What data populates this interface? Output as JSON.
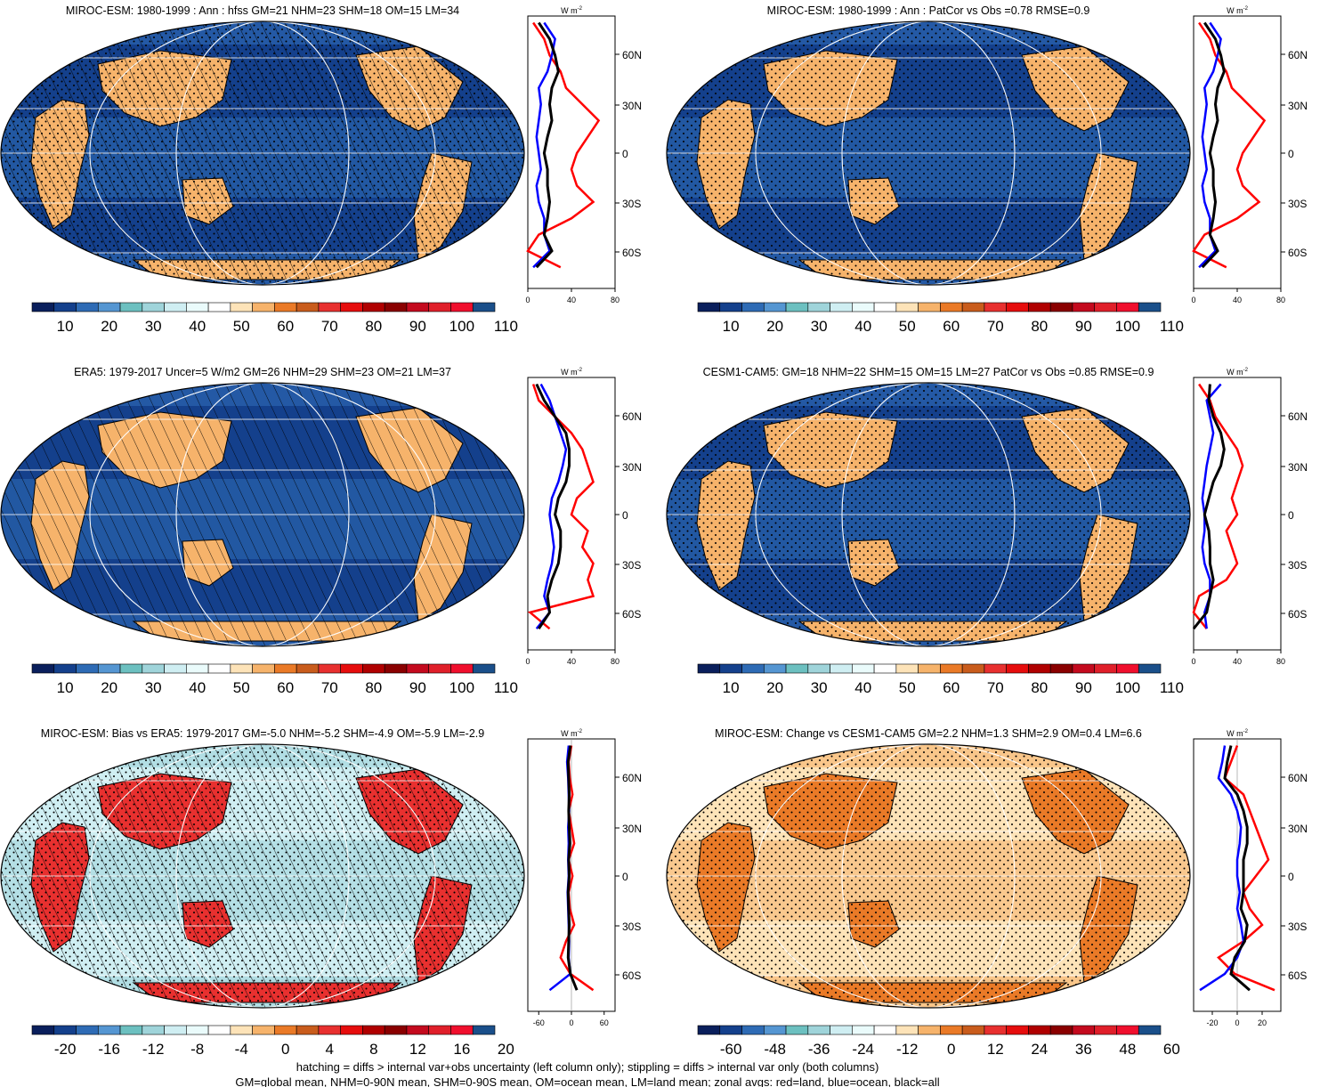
{
  "panels": [
    {
      "title": "MIROC-ESM: 1980-1999 : Ann : hfss GM=21 NHM=23 SHM=18 OM=15 LM=34",
      "map_style": "abs",
      "hatch": true,
      "stipple": true,
      "colorbar": {
        "labels": [
          "10",
          "20",
          "30",
          "40",
          "50",
          "60",
          "70",
          "80",
          "90",
          "100",
          "110"
        ],
        "colors": [
          "#0a1f5c",
          "#14408c",
          "#2e6bb5",
          "#5596d2",
          "#6cc0c0",
          "#9fd4da",
          "#cfeef2",
          "#eafbfb",
          "#ffffff",
          "#fde3b8",
          "#f6b36b",
          "#ea7a27",
          "#c95c1c",
          "#e8302f",
          "#e60d0d",
          "#b00000",
          "#8a0000",
          "#c40a1e",
          "#e01f2a",
          "#f00f2d",
          "#1a4f8a"
        ]
      },
      "zonal": {
        "xlabels": [
          "0",
          "40",
          "80"
        ],
        "xmin": 0,
        "xmax": 80,
        "unit_main": "W m",
        "unit_sup": "-2"
      }
    },
    {
      "title": "MIROC-ESM: 1980-1999 : Ann : PatCor vs Obs =0.78 RMSE=0.9",
      "map_style": "abs",
      "hatch": false,
      "stipple": true,
      "colorbar": {
        "labels": [
          "10",
          "20",
          "30",
          "40",
          "50",
          "60",
          "70",
          "80",
          "90",
          "100",
          "110"
        ],
        "colors": [
          "#0a1f5c",
          "#14408c",
          "#2e6bb5",
          "#5596d2",
          "#6cc0c0",
          "#9fd4da",
          "#cfeef2",
          "#eafbfb",
          "#ffffff",
          "#fde3b8",
          "#f6b36b",
          "#ea7a27",
          "#c95c1c",
          "#e8302f",
          "#e60d0d",
          "#b00000",
          "#8a0000",
          "#c40a1e",
          "#e01f2a",
          "#f00f2d",
          "#1a4f8a"
        ]
      },
      "zonal": {
        "xlabels": [
          "0",
          "40",
          "80"
        ],
        "xmin": 0,
        "xmax": 80,
        "unit_main": "W m",
        "unit_sup": "-2"
      }
    },
    {
      "title": "ERA5: 1979-2017 Uncer=5 W/m2 GM=26 NHM=29 SHM=23 OM=21 LM=37",
      "map_style": "abs",
      "hatch": true,
      "stipple": false,
      "colorbar": {
        "labels": [
          "10",
          "20",
          "30",
          "40",
          "50",
          "60",
          "70",
          "80",
          "90",
          "100",
          "110"
        ],
        "colors": [
          "#0a1f5c",
          "#14408c",
          "#2e6bb5",
          "#5596d2",
          "#6cc0c0",
          "#9fd4da",
          "#cfeef2",
          "#eafbfb",
          "#ffffff",
          "#fde3b8",
          "#f6b36b",
          "#ea7a27",
          "#c95c1c",
          "#e8302f",
          "#e60d0d",
          "#b00000",
          "#8a0000",
          "#c40a1e",
          "#e01f2a",
          "#f00f2d",
          "#1a4f8a"
        ]
      },
      "zonal": {
        "xlabels": [
          "0",
          "40",
          "80"
        ],
        "xmin": 0,
        "xmax": 80,
        "unit_main": "W m",
        "unit_sup": "-2"
      }
    },
    {
      "title": "CESM1-CAM5: GM=18 NHM=22 SHM=15 OM=15 LM=27 PatCor vs Obs =0.85 RMSE=0.9",
      "map_style": "abs",
      "hatch": false,
      "stipple": true,
      "colorbar": {
        "labels": [
          "10",
          "20",
          "30",
          "40",
          "50",
          "60",
          "70",
          "80",
          "90",
          "100",
          "110"
        ],
        "colors": [
          "#0a1f5c",
          "#14408c",
          "#2e6bb5",
          "#5596d2",
          "#6cc0c0",
          "#9fd4da",
          "#cfeef2",
          "#eafbfb",
          "#ffffff",
          "#fde3b8",
          "#f6b36b",
          "#ea7a27",
          "#c95c1c",
          "#e8302f",
          "#e60d0d",
          "#b00000",
          "#8a0000",
          "#c40a1e",
          "#e01f2a",
          "#f00f2d",
          "#1a4f8a"
        ]
      },
      "zonal": {
        "xlabels": [
          "0",
          "40",
          "80"
        ],
        "xmin": 0,
        "xmax": 80,
        "unit_main": "W m",
        "unit_sup": "-2"
      }
    },
    {
      "title": "MIROC-ESM: Bias vs ERA5: 1979-2017 GM=-5.0 NHM=-5.2 SHM=-4.9 OM=-5.9 LM=-2.9",
      "map_style": "bias",
      "hatch": true,
      "stipple": true,
      "colorbar": {
        "labels": [
          "-20",
          "-16",
          "-12",
          "-8",
          "-4",
          "0",
          "4",
          "8",
          "12",
          "16",
          "20"
        ],
        "colors": [
          "#0a1f5c",
          "#14408c",
          "#2e6bb5",
          "#5596d2",
          "#6cc0c0",
          "#9fd4da",
          "#cfeef2",
          "#eafbfb",
          "#ffffff",
          "#fde3b8",
          "#f6b36b",
          "#ea7a27",
          "#c95c1c",
          "#e8302f",
          "#e60d0d",
          "#b00000",
          "#8a0000",
          "#c40a1e",
          "#e01f2a",
          "#f00f2d",
          "#1a4f8a"
        ]
      },
      "zonal": {
        "xlabels": [
          "-60",
          "0",
          "60"
        ],
        "xmin": -80,
        "xmax": 80,
        "unit_main": "W m",
        "unit_sup": "-2"
      }
    },
    {
      "title": "MIROC-ESM: Change vs CESM1-CAM5 GM=2.2 NHM=1.3 SHM=2.9 OM=0.4 LM=6.6",
      "map_style": "change",
      "hatch": false,
      "stipple": true,
      "colorbar": {
        "labels": [
          "-60",
          "-48",
          "-36",
          "-24",
          "-12",
          "0",
          "12",
          "24",
          "36",
          "48",
          "60"
        ],
        "colors": [
          "#0a1f5c",
          "#14408c",
          "#2e6bb5",
          "#5596d2",
          "#6cc0c0",
          "#9fd4da",
          "#cfeef2",
          "#eafbfb",
          "#ffffff",
          "#fde3b8",
          "#f6b36b",
          "#ea7a27",
          "#c95c1c",
          "#e8302f",
          "#e60d0d",
          "#b00000",
          "#8a0000",
          "#c40a1e",
          "#e01f2a",
          "#f00f2d",
          "#1a4f8a"
        ]
      },
      "zonal": {
        "xlabels": [
          "-20",
          "0",
          "20"
        ],
        "xmin": -35,
        "xmax": 35,
        "unit_main": "W m",
        "unit_sup": "-2"
      }
    }
  ],
  "lat_labels": [
    "60N",
    "30N",
    "0",
    "30S",
    "60S"
  ],
  "footnote": {
    "line1": "hatching = diffs > internal var+obs uncertainty (left column only); stippling = diffs > internal var only (both columns)",
    "line2": "GM=global mean, NHM=0-90N mean, SHM=0-90S mean, OM=ocean mean, LM=land mean; zonal avgs: red=land, blue=ocean, black=all"
  },
  "chart_data": [
    {
      "type": "heatmap",
      "title": "MIROC-ESM: 1980-1999 : Ann : hfss GM=21 NHM=23 SHM=18 OM=15 LM=34",
      "colorbar_ticks": [
        10,
        20,
        30,
        40,
        50,
        60,
        70,
        80,
        90,
        100,
        110
      ],
      "zonal_mean": {
        "lat": [
          80,
          70,
          60,
          50,
          40,
          30,
          20,
          10,
          0,
          -10,
          -20,
          -30,
          -40,
          -50,
          -60,
          -70
        ],
        "land": [
          5,
          15,
          20,
          30,
          35,
          50,
          65,
          55,
          45,
          40,
          45,
          60,
          40,
          10,
          0,
          30
        ],
        "ocean": [
          15,
          25,
          22,
          18,
          10,
          12,
          10,
          8,
          10,
          12,
          8,
          10,
          15,
          15,
          20,
          5
        ],
        "all": [
          10,
          20,
          25,
          28,
          22,
          20,
          22,
          18,
          15,
          18,
          18,
          20,
          18,
          15,
          22,
          8
        ]
      }
    },
    {
      "type": "heatmap",
      "title": "MIROC-ESM: 1980-1999 : Ann : PatCor vs Obs =0.78 RMSE=0.9",
      "colorbar_ticks": [
        10,
        20,
        30,
        40,
        50,
        60,
        70,
        80,
        90,
        100,
        110
      ],
      "zonal_mean": {
        "lat": [
          80,
          70,
          60,
          50,
          40,
          30,
          20,
          10,
          0,
          -10,
          -20,
          -30,
          -40,
          -50,
          -60,
          -70
        ],
        "land": [
          5,
          15,
          20,
          30,
          35,
          50,
          65,
          55,
          45,
          40,
          45,
          60,
          40,
          10,
          0,
          30
        ],
        "ocean": [
          15,
          25,
          22,
          18,
          10,
          12,
          10,
          8,
          10,
          12,
          8,
          10,
          15,
          15,
          20,
          5
        ],
        "all": [
          10,
          20,
          25,
          28,
          22,
          20,
          22,
          18,
          15,
          18,
          18,
          20,
          18,
          15,
          22,
          8
        ]
      }
    },
    {
      "type": "heatmap",
      "title": "ERA5: 1979-2017 Uncer=5 W/m2 GM=26 NHM=29 SHM=23 OM=21 LM=37",
      "colorbar_ticks": [
        10,
        20,
        30,
        40,
        50,
        60,
        70,
        80,
        90,
        100,
        110
      ],
      "zonal_mean": {
        "lat": [
          80,
          70,
          60,
          50,
          40,
          30,
          20,
          10,
          0,
          -10,
          -20,
          -30,
          -40,
          -50,
          -60,
          -70
        ],
        "land": [
          5,
          10,
          25,
          40,
          50,
          55,
          60,
          45,
          40,
          55,
          50,
          60,
          55,
          60,
          2,
          20
        ],
        "ocean": [
          12,
          20,
          25,
          30,
          35,
          32,
          28,
          22,
          20,
          22,
          24,
          22,
          18,
          15,
          20,
          8
        ],
        "all": [
          8,
          15,
          25,
          35,
          38,
          38,
          35,
          28,
          25,
          30,
          30,
          28,
          22,
          18,
          20,
          10
        ]
      }
    },
    {
      "type": "heatmap",
      "title": "CESM1-CAM5: GM=18 NHM=22 SHM=15 OM=15 LM=27 PatCor vs Obs =0.85 RMSE=0.9",
      "colorbar_ticks": [
        10,
        20,
        30,
        40,
        50,
        60,
        70,
        80,
        90,
        100,
        110
      ],
      "zonal_mean": {
        "lat": [
          80,
          70,
          60,
          50,
          40,
          30,
          20,
          10,
          0,
          -10,
          -20,
          -30,
          -40,
          -50,
          -60,
          -70
        ],
        "land": [
          5,
          15,
          20,
          30,
          40,
          45,
          40,
          35,
          40,
          30,
          35,
          40,
          30,
          5,
          0,
          12
        ],
        "ocean": [
          25,
          12,
          15,
          18,
          15,
          12,
          10,
          8,
          10,
          10,
          8,
          10,
          15,
          15,
          10,
          12
        ],
        "all": [
          15,
          14,
          18,
          25,
          28,
          25,
          18,
          14,
          10,
          14,
          15,
          15,
          18,
          15,
          12,
          0
        ]
      }
    },
    {
      "type": "heatmap",
      "title": "MIROC-ESM: Bias vs ERA5: 1979-2017 GM=-5.0 NHM=-5.2 SHM=-4.9 OM=-5.9 LM=-2.9",
      "colorbar_ticks": [
        -20,
        -16,
        -12,
        -8,
        -4,
        0,
        4,
        8,
        12,
        16,
        20
      ],
      "zonal_mean": {
        "lat": [
          80,
          70,
          60,
          50,
          40,
          30,
          20,
          10,
          0,
          -10,
          -20,
          -30,
          -40,
          -50,
          -60,
          -70
        ],
        "land": [
          0,
          -5,
          -3,
          2,
          -5,
          0,
          5,
          -5,
          2,
          -5,
          -3,
          5,
          -10,
          -20,
          -2,
          40
        ],
        "ocean": [
          -5,
          -8,
          -6,
          -5,
          -4,
          -6,
          -5,
          -6,
          -5,
          -7,
          -6,
          -5,
          -4,
          -5,
          -2,
          -40
        ],
        "all": [
          -2,
          -6,
          -5,
          -4,
          -5,
          -4,
          -3,
          -5,
          -4,
          -6,
          -5,
          -4,
          -5,
          -6,
          -2,
          10
        ]
      }
    },
    {
      "type": "heatmap",
      "title": "MIROC-ESM: Change vs CESM1-CAM5 GM=2.2 NHM=1.3 SHM=2.9 OM=0.4 LM=6.6",
      "colorbar_ticks": [
        -60,
        -48,
        -36,
        -24,
        -12,
        0,
        12,
        24,
        36,
        48,
        60
      ],
      "zonal_mean": {
        "lat": [
          80,
          70,
          60,
          50,
          40,
          30,
          20,
          10,
          0,
          -10,
          -20,
          -30,
          -40,
          -50,
          -60,
          -70
        ],
        "land": [
          0,
          -5,
          -10,
          5,
          10,
          15,
          20,
          25,
          15,
          5,
          10,
          20,
          5,
          -15,
          -2,
          30
        ],
        "ocean": [
          -10,
          -12,
          -15,
          -5,
          0,
          3,
          2,
          0,
          0,
          2,
          0,
          3,
          5,
          0,
          -10,
          -30
        ],
        "all": [
          -5,
          -8,
          -10,
          0,
          5,
          8,
          8,
          5,
          5,
          5,
          3,
          8,
          6,
          -2,
          -5,
          10
        ]
      }
    }
  ]
}
